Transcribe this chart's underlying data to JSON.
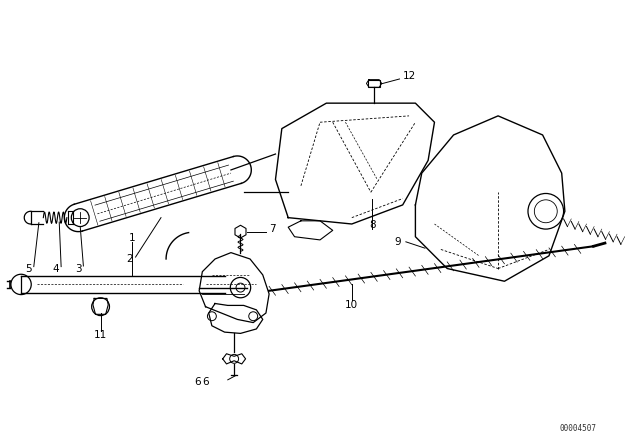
{
  "bg_color": "#ffffff",
  "line_color": "#000000",
  "fig_width": 6.4,
  "fig_height": 4.48,
  "dpi": 100,
  "diagram_id": "00004507"
}
